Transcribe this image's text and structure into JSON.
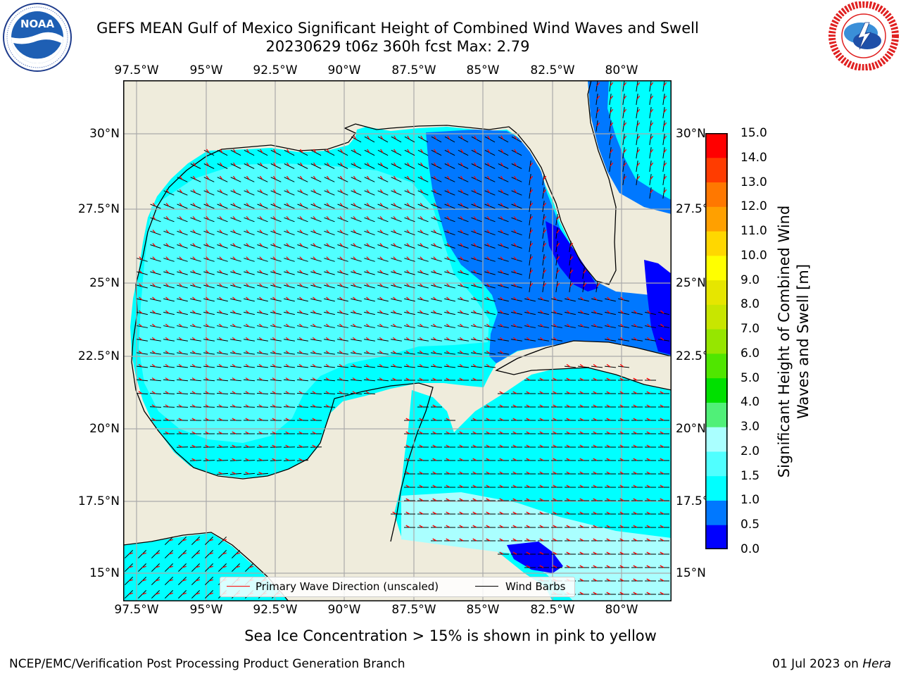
{
  "title": {
    "line1": "GEFS MEAN Gulf of Mexico Significant Height of Combined Wind Waves and Swell",
    "line2": "20230629 t06z 360h fcst   Max: 2.79"
  },
  "logos": {
    "left": {
      "text": "NOAA",
      "ring_text": "NATIONAL OCEANIC AND ATMOSPHERIC ADMINISTRATION · U.S. DEPARTMENT OF COMMERCE",
      "icon": "noaa-logo-icon"
    },
    "right": {
      "ring_text": "NATIONAL WEATHER SERVICE",
      "icon": "nws-logo-icon"
    }
  },
  "map": {
    "lon_ticks": [
      "97.5°W",
      "95°W",
      "92.5°W",
      "90°W",
      "87.5°W",
      "85°W",
      "82.5°W",
      "80°W"
    ],
    "lat_ticks": [
      "30°N",
      "27.5°N",
      "25°N",
      "22.5°N",
      "20°N",
      "17.5°N",
      "15°N"
    ],
    "lon_range": [
      -98,
      -78.2
    ],
    "lat_range": [
      14,
      31.8
    ],
    "grid": true,
    "land_color": "#efecdc",
    "ocean_color": "#00ffff",
    "legend": {
      "position": "lower-center",
      "items": [
        {
          "label": "Primary Wave Direction (unscaled)",
          "color": "#ff0000"
        },
        {
          "label": "Wind Barbs",
          "color": "#000000"
        }
      ]
    }
  },
  "colorbar": {
    "label": "Significant Height of Combined Wind Waves and Swell [m]",
    "ticks": [
      "0.0",
      "0.5",
      "1.0",
      "1.5",
      "2.0",
      "3.0",
      "4.0",
      "5.0",
      "6.0",
      "7.0",
      "8.0",
      "9.0",
      "10.0",
      "11.0",
      "12.0",
      "13.0",
      "14.0",
      "15.0"
    ],
    "colors": [
      "#0000ff",
      "#0078ff",
      "#00ffff",
      "#50ffff",
      "#aaffff",
      "#50f078",
      "#00e000",
      "#50e600",
      "#96e600",
      "#c8e600",
      "#e6e600",
      "#ffff00",
      "#ffd700",
      "#ffa000",
      "#ff7800",
      "#ff3c00",
      "#ff0000"
    ]
  },
  "note": "Sea Ice Concentration > 15% is shown in pink to yellow",
  "footer": {
    "credit": "NCEP/EMC/Verification Post Processing Product Generation Branch",
    "date": "01 Jul 2023 on",
    "machine": "Hera"
  }
}
